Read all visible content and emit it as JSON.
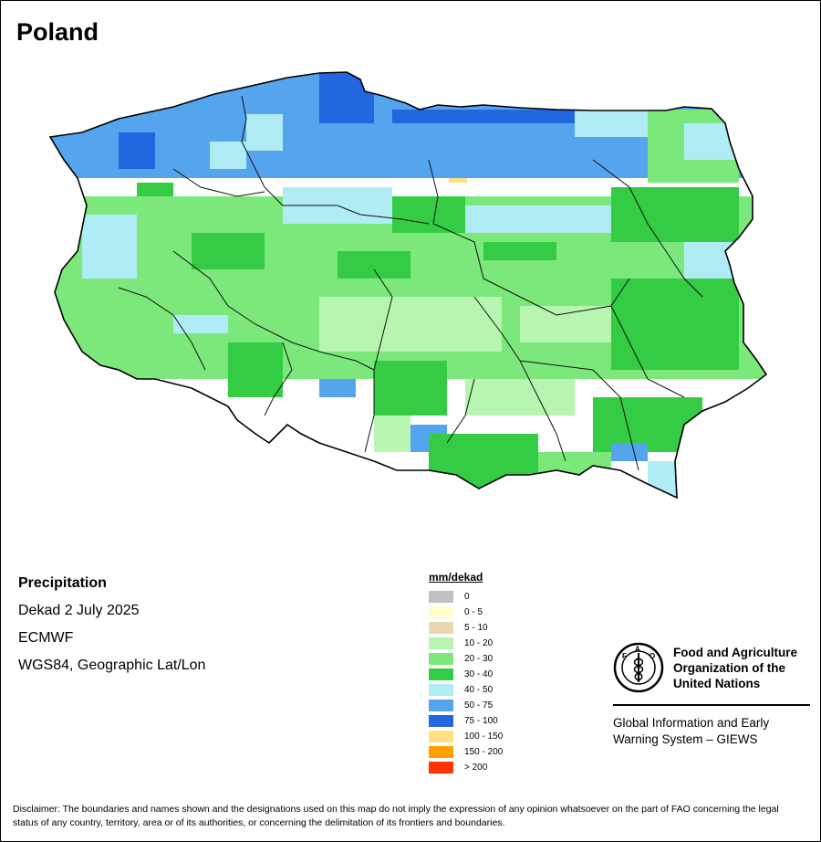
{
  "map": {
    "title": "Poland",
    "variable": "Precipitation",
    "period": "Dekad 2 July 2025",
    "source": "ECMWF",
    "projection": "WGS84, Geographic Lat/Lon"
  },
  "legend": {
    "title": "mm/dekad",
    "items": [
      {
        "label": "0",
        "color": "#c0c0c0"
      },
      {
        "label": "0 - 5",
        "color": "#ffffcc"
      },
      {
        "label": "5 - 10",
        "color": "#e8d8b0"
      },
      {
        "label": "10 - 20",
        "color": "#b7f5b0"
      },
      {
        "label": "20 - 30",
        "color": "#7ce87c"
      },
      {
        "label": "30 - 40",
        "color": "#33cc44"
      },
      {
        "label": "40 - 50",
        "color": "#b0ecf5"
      },
      {
        "label": "50 - 75",
        "color": "#55a5ee"
      },
      {
        "label": "75 - 100",
        "color": "#2266e0"
      },
      {
        "label": "100 - 150",
        "color": "#ffe080"
      },
      {
        "label": "150 - 200",
        "color": "#ffa000"
      },
      {
        "label": "> 200",
        "color": "#ff3300"
      }
    ]
  },
  "fao": {
    "name_line1": "Food and Agriculture",
    "name_line2": "Organization of the",
    "name_line3": "United Nations",
    "giews_line1": "Global Information and Early",
    "giews_line2": "Warning System – GIEWS",
    "emblem_icon": "fao-emblem-icon"
  },
  "disclaimer": "Disclaimer: The boundaries and names shown and the designations used on this map do not imply the expression of any opinion whatsoever on the part of FAO concerning the legal status of any country, territory, area or of its authorities, or concerning the delimitation of its frontiers and boundaries."
}
